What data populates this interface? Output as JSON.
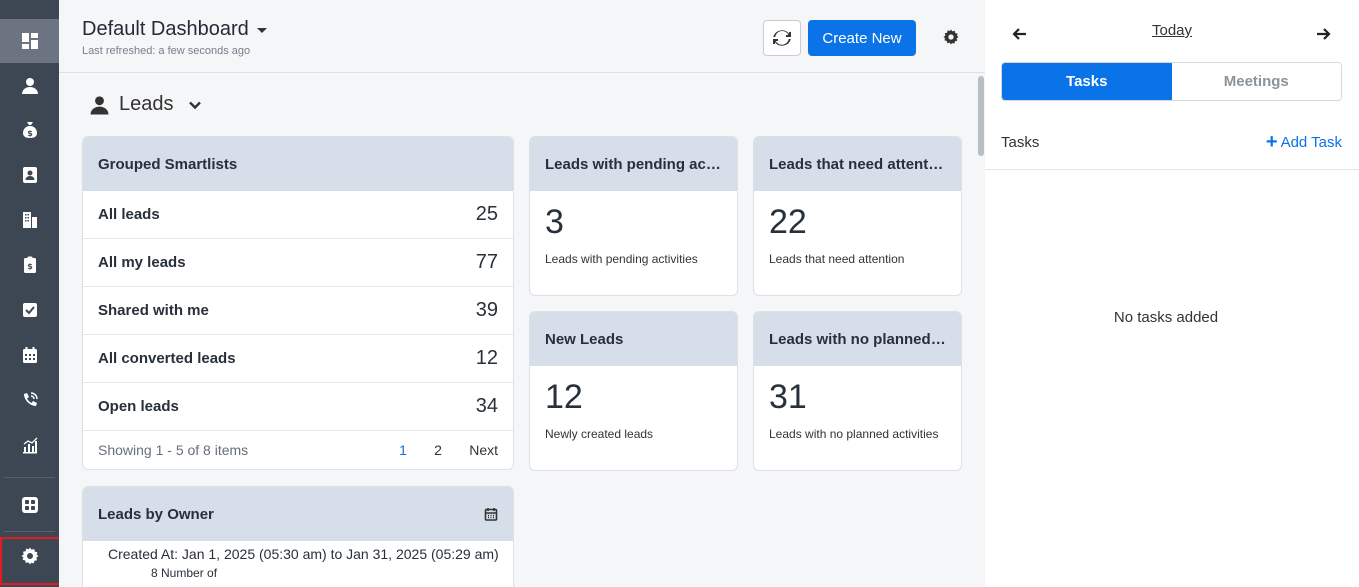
{
  "header": {
    "title": "Default Dashboard",
    "last_refreshed": "Last refreshed: a few seconds ago",
    "create_label": "Create New"
  },
  "section": {
    "title": "Leads"
  },
  "smartlists": {
    "title": "Grouped Smartlists",
    "rows": [
      {
        "label": "All leads",
        "value": "25"
      },
      {
        "label": "All my leads",
        "value": "77"
      },
      {
        "label": "Shared with me",
        "value": "39"
      },
      {
        "label": "All converted leads",
        "value": "12"
      },
      {
        "label": "Open leads",
        "value": "34"
      }
    ],
    "pager": {
      "showing": "Showing 1 - 5 of 8 items",
      "page1": "1",
      "page2": "2",
      "next": "Next"
    }
  },
  "metrics": [
    {
      "title": "Leads with pending activities",
      "value": "3",
      "desc": "Leads with pending activities"
    },
    {
      "title": "Leads that need attention",
      "value": "22",
      "desc": "Leads that need attention"
    },
    {
      "title": "New Leads",
      "value": "12",
      "desc": "Newly created leads"
    },
    {
      "title": "Leads with no planned activities",
      "value": "31",
      "desc": "Leads with no planned activities"
    }
  ],
  "owner": {
    "title": "Leads by Owner",
    "range": "Created At: Jan 1, 2025 (05:30 am) to Jan 31, 2025 (05:29 am)",
    "sub": "8 Number of"
  },
  "right_panel": {
    "date_label": "Today",
    "tabs": [
      "Tasks",
      "Meetings"
    ],
    "tasks_label": "Tasks",
    "add_task": "Add Task",
    "empty": "No tasks added"
  },
  "sidebar": {
    "items": [
      "dashboard-icon",
      "leads-icon",
      "deals-icon",
      "contacts-icon",
      "companies-icon",
      "quotes-icon",
      "tasks-icon",
      "calendar-icon",
      "calls-icon",
      "reports-icon",
      "apps-icon",
      "settings-icon"
    ]
  },
  "colors": {
    "accent": "#0a73e8",
    "sidebar": "#3d4754",
    "card_header": "#d6dfe9",
    "highlight": "#e01b22"
  }
}
